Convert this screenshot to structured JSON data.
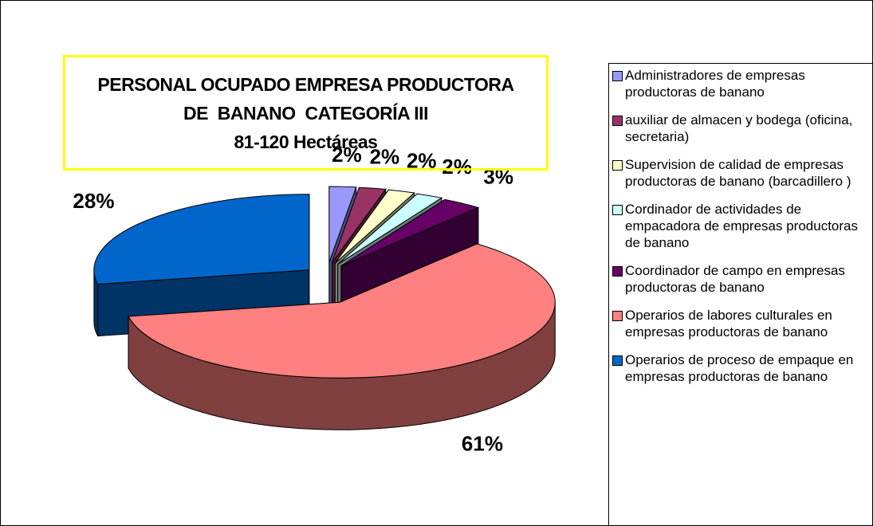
{
  "chart_data": {
    "type": "pie",
    "title": [
      "PERSONAL OCUPADO EMPRESA PRODUCTORA",
      "DE  BANANO  CATEGORÍA III",
      "81-120 Hectáreas"
    ],
    "categories": [
      "Administradores de empresas productoras de banano",
      "auxiliar de almacen y bodega (oficina, secretaria)",
      "Supervision de calidad de empresas productoras de banano (barcadillero )",
      "Cordinador de actividades de empacadora  de empresas productoras de banano",
      "Coordinador de campo en empresas productoras de banano",
      "Operarios de labores culturales en empresas productoras de banano",
      "Operarios de proceso de empaque en empresas productoras de banano"
    ],
    "values": [
      2,
      2,
      2,
      2,
      3,
      61,
      28
    ],
    "value_labels": [
      "2%",
      "2%",
      "2%",
      "2%",
      "3%",
      "61%",
      "28%"
    ],
    "colors": [
      "#9999ff",
      "#993366",
      "#ffffcc",
      "#ccffff",
      "#660066",
      "#ff8080",
      "#0066cc"
    ],
    "legend": "right"
  }
}
